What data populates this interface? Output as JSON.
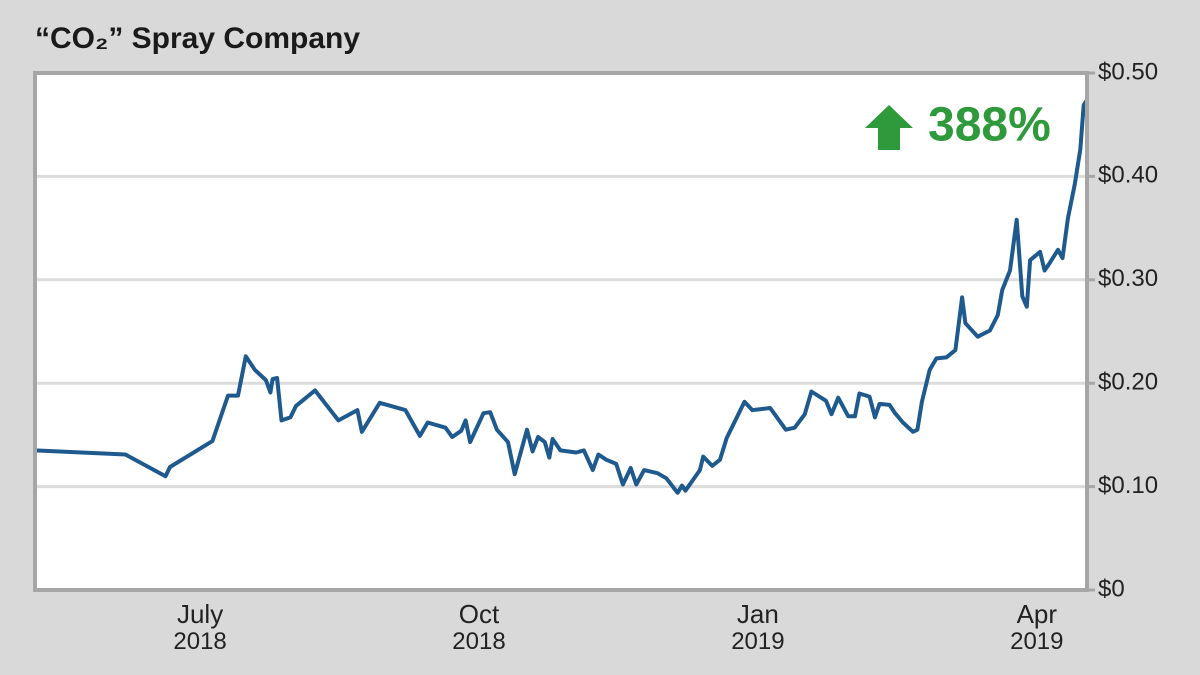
{
  "chart_data": {
    "type": "line",
    "title": "“CO₂” Spray Company",
    "annotation": "388%",
    "color": "#1f5a8f",
    "annotation_color": "#2e9a3c",
    "grid": true,
    "y_axis_side": "right",
    "x": [
      2018.352,
      2018.433,
      2018.469,
      2018.473,
      2018.511,
      2018.525,
      2018.534,
      2018.541,
      2018.549,
      2018.559,
      2018.563,
      2018.565,
      2018.569,
      2018.573,
      2018.581,
      2018.586,
      2018.603,
      2018.624,
      2018.641,
      2018.645,
      2018.661,
      2018.684,
      2018.697,
      2018.704,
      2018.72,
      2018.726,
      2018.734,
      2018.738,
      2018.742,
      2018.754,
      2018.76,
      2018.766,
      2018.776,
      2018.782,
      2018.793,
      2018.798,
      2018.803,
      2018.809,
      2018.813,
      2018.816,
      2018.823,
      2018.837,
      2018.844,
      2018.852,
      2018.857,
      2018.864,
      2018.873,
      2018.879,
      2018.886,
      2018.891,
      2018.898,
      2018.91,
      2018.918,
      2018.928,
      2018.932,
      2018.935,
      2018.948,
      2018.951,
      2018.959,
      2018.966,
      2018.972,
      2018.988,
      2018.995,
      2019.011,
      2019.025,
      2019.033,
      2019.042,
      2019.048,
      2019.061,
      2019.066,
      2019.072,
      2019.081,
      2019.087,
      2019.091,
      2019.1,
      2019.105,
      2019.109,
      2019.118,
      2019.123,
      2019.13,
      2019.139,
      2019.143,
      2019.147,
      2019.154,
      2019.16,
      2019.169,
      2019.177,
      2019.183,
      2019.186,
      2019.197,
      2019.208,
      2019.215,
      2019.219,
      2019.226,
      2019.232,
      2019.237,
      2019.241,
      2019.244,
      2019.253,
      2019.257,
      2019.262,
      2019.269,
      2019.273,
      2019.278,
      2019.284,
      2019.289,
      2019.292,
      2019.295
    ],
    "values": [
      0.135,
      0.131,
      0.11,
      0.119,
      0.144,
      0.188,
      0.188,
      0.226,
      0.213,
      0.203,
      0.191,
      0.204,
      0.205,
      0.164,
      0.167,
      0.178,
      0.193,
      0.164,
      0.174,
      0.153,
      0.181,
      0.174,
      0.149,
      0.162,
      0.157,
      0.148,
      0.154,
      0.164,
      0.143,
      0.171,
      0.172,
      0.155,
      0.143,
      0.112,
      0.155,
      0.134,
      0.148,
      0.143,
      0.128,
      0.146,
      0.135,
      0.133,
      0.135,
      0.116,
      0.131,
      0.126,
      0.122,
      0.102,
      0.118,
      0.102,
      0.116,
      0.113,
      0.108,
      0.094,
      0.101,
      0.096,
      0.116,
      0.129,
      0.12,
      0.126,
      0.147,
      0.182,
      0.174,
      0.176,
      0.155,
      0.157,
      0.17,
      0.192,
      0.183,
      0.17,
      0.186,
      0.168,
      0.168,
      0.19,
      0.187,
      0.167,
      0.18,
      0.179,
      0.171,
      0.162,
      0.153,
      0.155,
      0.182,
      0.213,
      0.224,
      0.225,
      0.232,
      0.283,
      0.258,
      0.245,
      0.251,
      0.266,
      0.29,
      0.309,
      0.358,
      0.284,
      0.274,
      0.319,
      0.327,
      0.309,
      0.317,
      0.329,
      0.321,
      0.36,
      0.392,
      0.426,
      0.469,
      0.474
    ],
    "xlim": [
      2018.352,
      2019.295
    ],
    "xticks": [
      {
        "value": 2018.5,
        "label": "July\n2018"
      },
      {
        "value": 2018.75,
        "label": "Oct\n2018"
      },
      {
        "value": 2019.0,
        "label": "Jan\n2019"
      },
      {
        "value": 2019.25,
        "label": "Apr\n2019"
      }
    ],
    "ylim": [
      0,
      0.5
    ],
    "yticks": [
      {
        "value": 0,
        "label": "$0"
      },
      {
        "value": 0.1,
        "label": "$0.10"
      },
      {
        "value": 0.2,
        "label": "$0.20"
      },
      {
        "value": 0.3,
        "label": "$0.30"
      },
      {
        "value": 0.4,
        "label": "$0.40"
      },
      {
        "value": 0.5,
        "label": "$0.50"
      }
    ]
  }
}
